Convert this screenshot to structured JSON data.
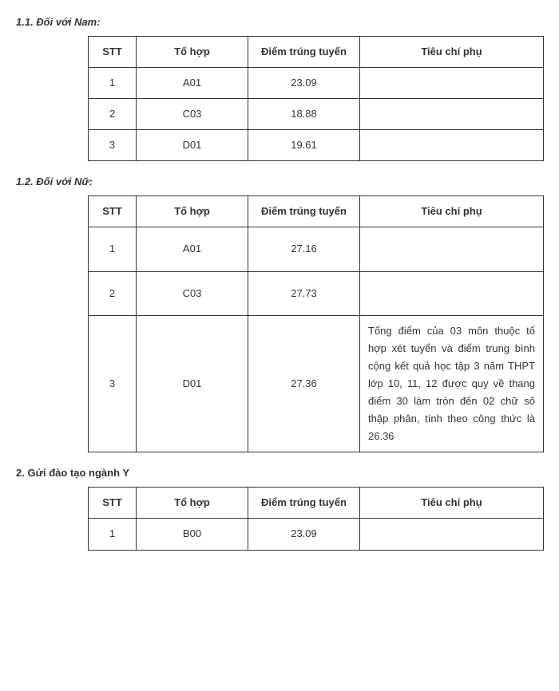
{
  "section1_1": {
    "heading": "1.1. Đối với Nam:",
    "columns": [
      "STT",
      "Tổ hợp",
      "Điểm trúng tuyển",
      "Tiêu chí phụ"
    ],
    "rows": [
      {
        "stt": "1",
        "tohop": "A01",
        "diem": "23.09",
        "tieu": ""
      },
      {
        "stt": "2",
        "tohop": "C03",
        "diem": "18.88",
        "tieu": ""
      },
      {
        "stt": "3",
        "tohop": "D01",
        "diem": "19.61",
        "tieu": ""
      }
    ]
  },
  "section1_2": {
    "heading": "1.2. Đối với Nữ:",
    "columns": [
      "STT",
      "Tổ hợp",
      "Điểm trúng tuyển",
      "Tiêu chí phụ"
    ],
    "rows": [
      {
        "stt": "1",
        "tohop": "A01",
        "diem": "27.16",
        "tieu": ""
      },
      {
        "stt": "2",
        "tohop": "C03",
        "diem": "27.73",
        "tieu": ""
      },
      {
        "stt": "3",
        "tohop": "D01",
        "diem": "27.36",
        "tieu": "Tổng điểm của 03 môn thuộc tổ hợp xét tuyển và điểm trung bình cộng kết quả học tập 3 năm THPT lớp 10, 11, 12 được quy về thang điểm 30 làm tròn đến 02 chữ số thập phân, tính theo công thức là 26.36"
      }
    ]
  },
  "section2": {
    "heading": "2. Gửi đào tạo ngành Y",
    "columns": [
      "STT",
      "Tổ hợp",
      "Điểm trúng tuyển",
      "Tiêu chí phụ"
    ],
    "rows": [
      {
        "stt": "1",
        "tohop": "B00",
        "diem": "23.09",
        "tieu": ""
      }
    ]
  }
}
